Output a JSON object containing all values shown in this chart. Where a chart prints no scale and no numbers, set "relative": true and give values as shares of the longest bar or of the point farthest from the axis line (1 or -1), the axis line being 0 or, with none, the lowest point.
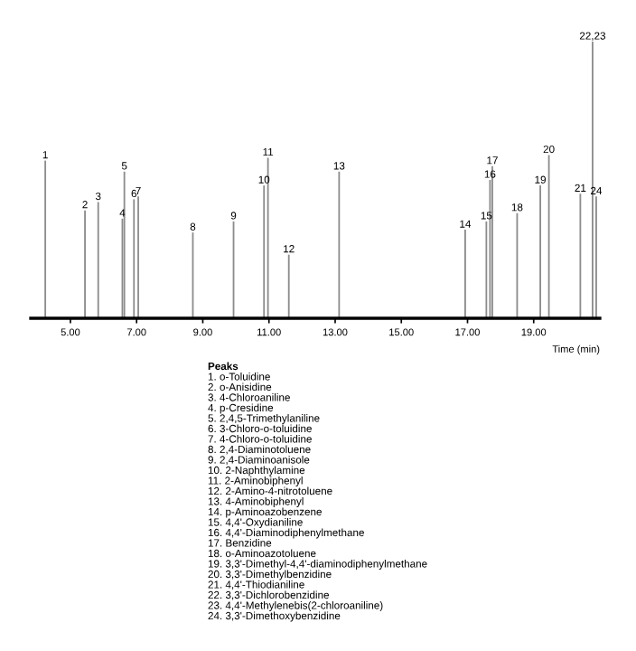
{
  "chart_data": {
    "type": "bar",
    "relative": true,
    "color": "#8c8c8c",
    "xlabel": "Time (min)",
    "tick_labels": "x",
    "grid": false,
    "legend": false,
    "x": [
      4.24,
      5.44,
      5.84,
      6.57,
      6.63,
      6.92,
      7.05,
      8.7,
      9.93,
      10.85,
      10.97,
      11.6,
      13.12,
      16.93,
      17.57,
      17.68,
      17.75,
      18.5,
      19.2,
      19.46,
      20.41,
      20.78,
      20.89
    ],
    "values": [
      0.57,
      0.39,
      0.42,
      0.36,
      0.53,
      0.43,
      0.44,
      0.31,
      0.35,
      0.48,
      0.58,
      0.23,
      0.53,
      0.32,
      0.35,
      0.5,
      0.55,
      0.38,
      0.48,
      0.59,
      0.45,
      1.0,
      0.44
    ],
    "xlim": [
      3.8,
      21.0
    ],
    "xticks": [
      {
        "value": 5,
        "label": "5.00"
      },
      {
        "value": 7,
        "label": "7.00"
      },
      {
        "value": 9,
        "label": "9.00"
      },
      {
        "value": 11,
        "label": "11.00"
      },
      {
        "value": 13,
        "label": "13.00"
      },
      {
        "value": 15,
        "label": "15.00"
      },
      {
        "value": 17,
        "label": "17.00"
      },
      {
        "value": 19,
        "label": "19.00"
      }
    ],
    "annotations": [
      {
        "text": "1",
        "x": 4.24,
        "y": 0.57
      },
      {
        "text": "2",
        "x": 5.44,
        "y": 0.39
      },
      {
        "text": "3",
        "x": 5.84,
        "y": 0.42
      },
      {
        "text": "4",
        "x": 6.57,
        "y": 0.36
      },
      {
        "text": "5",
        "x": 6.63,
        "y": 0.53
      },
      {
        "text": "6",
        "x": 6.92,
        "y": 0.43
      },
      {
        "text": "7",
        "x": 7.05,
        "y": 0.44
      },
      {
        "text": "8",
        "x": 8.7,
        "y": 0.31
      },
      {
        "text": "9",
        "x": 9.93,
        "y": 0.35
      },
      {
        "text": "10",
        "x": 10.85,
        "y": 0.48
      },
      {
        "text": "11",
        "x": 10.97,
        "y": 0.58
      },
      {
        "text": "12",
        "x": 11.6,
        "y": 0.23
      },
      {
        "text": "13",
        "x": 13.12,
        "y": 0.53
      },
      {
        "text": "14",
        "x": 16.93,
        "y": 0.32
      },
      {
        "text": "15",
        "x": 17.57,
        "y": 0.35
      },
      {
        "text": "16",
        "x": 17.68,
        "y": 0.5
      },
      {
        "text": "17",
        "x": 17.75,
        "y": 0.55
      },
      {
        "text": "18",
        "x": 18.5,
        "y": 0.38
      },
      {
        "text": "19",
        "x": 19.2,
        "y": 0.48
      },
      {
        "text": "20",
        "x": 19.46,
        "y": 0.59
      },
      {
        "text": "21",
        "x": 20.41,
        "y": 0.45
      },
      {
        "text": "22,23",
        "x": 20.78,
        "y": 1.0
      },
      {
        "text": "24",
        "x": 20.89,
        "y": 0.44
      },
      "Peaks",
      "1. o-Toluidine",
      "2. o-Anisidine",
      "3. 4-Chloroaniline",
      "4. p-Cresidine",
      "5. 2,4,5-Trimethylaniline",
      "6. 3-Chloro-o-toluidine",
      "7. 4-Chloro-o-toluidine",
      "8. 2,4-Diaminotoluene",
      "9. 2,4-Diaminoanisole",
      "10. 2-Naphthylamine",
      "11. 2-Aminobiphenyl",
      "12. 2-Amino-4-nitrotoluene",
      "13. 4-Aminobiphenyl",
      "14. p-Aminoazobenzene",
      "15. 4,4'-Oxydianiline",
      "16. 4,4'-Diaminodiphenylmethane",
      "17. Benzidine",
      "18. o-Aminoazotoluene",
      "19. 3,3'-Dimethyl-4,4'-diaminodiphenylmethane",
      "20. 3,3'-Dimethylbenzidine",
      "21. 4,4'-Thiodianiline",
      "22. 3,3'-Dichlorobenzidine",
      "23. 4,4'-Methylenebis(2-chloroaniline)",
      "24. 3,3'-Dimethoxybenzidine"
    ]
  }
}
